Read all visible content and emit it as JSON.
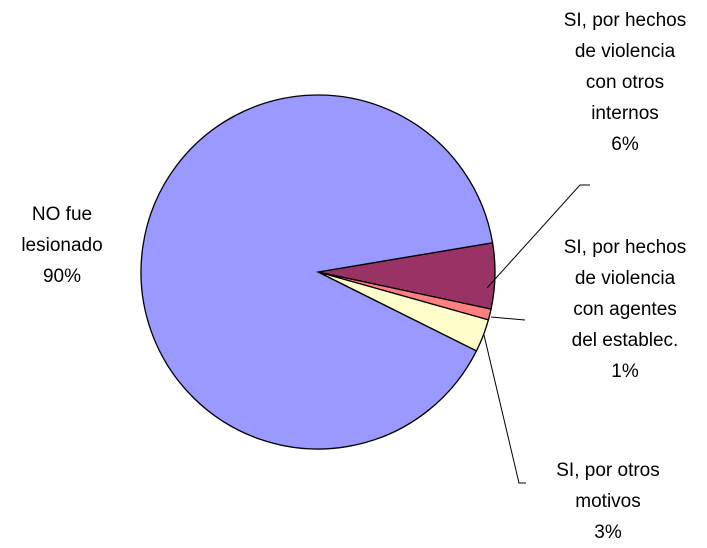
{
  "chart_data": {
    "type": "pie",
    "categories": [
      "NO fue lesionado",
      "SI, por hechos de violencia con otros internos",
      "SI, por hechos de violencia con agentes del establec.",
      "SI, por otros motivos"
    ],
    "values": [
      90,
      6,
      1,
      3
    ],
    "value_labels": [
      "90%",
      "6%",
      "1%",
      "3%"
    ],
    "colors": [
      "#9999ff",
      "#993366",
      "#ff8080",
      "#ffffcc"
    ]
  }
}
